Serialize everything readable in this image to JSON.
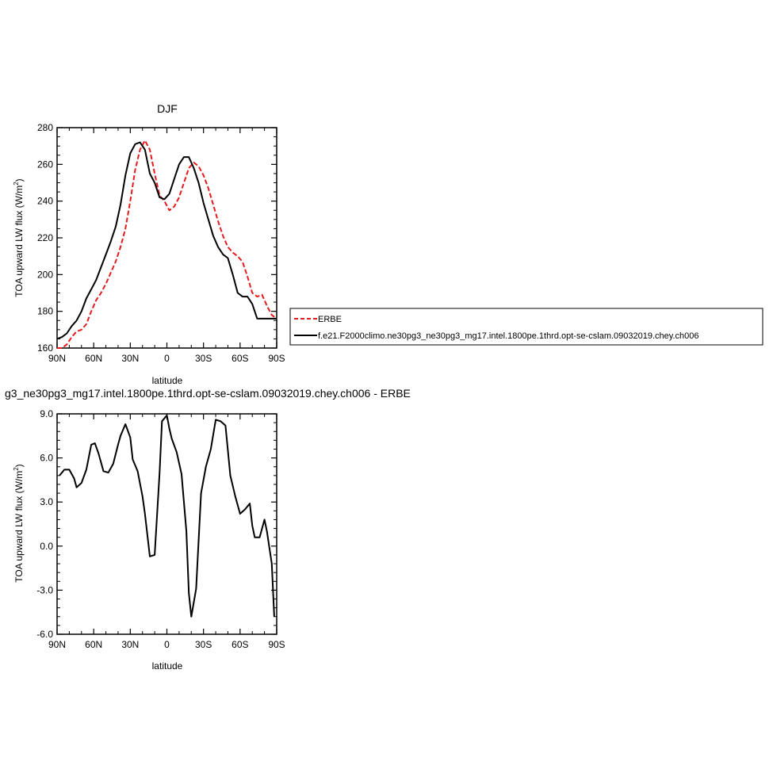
{
  "chart_data": [
    {
      "type": "line",
      "title": "DJF",
      "xlabel": "latitude",
      "ylabel": "TOA upward LW flux (W/m²)",
      "ylabel_main": "TOA upward LW flux (W/m",
      "ylabel_sup": "2",
      "ylabel_end": ")",
      "xlim": [
        90,
        -90
      ],
      "ylim": [
        160,
        280
      ],
      "x_ticks": [
        {
          "value": 90,
          "label": "90N"
        },
        {
          "value": 60,
          "label": "60N"
        },
        {
          "value": 30,
          "label": "30N"
        },
        {
          "value": 0,
          "label": "0"
        },
        {
          "value": -30,
          "label": "30S"
        },
        {
          "value": -60,
          "label": "60S"
        },
        {
          "value": -90,
          "label": "90S"
        }
      ],
      "y_ticks": [
        {
          "value": 160,
          "label": "160"
        },
        {
          "value": 180,
          "label": "180"
        },
        {
          "value": 200,
          "label": "200"
        },
        {
          "value": 220,
          "label": "220"
        },
        {
          "value": 240,
          "label": "240"
        },
        {
          "value": 260,
          "label": "260"
        },
        {
          "value": 280,
          "label": "280"
        }
      ],
      "legend_placement": "right, outside plot",
      "series": [
        {
          "name": "ERBE",
          "color": "#e41a1c",
          "dash": true,
          "x": [
            90,
            86,
            82,
            78,
            74,
            70,
            66,
            62,
            58,
            54,
            50,
            46,
            42,
            38,
            34,
            30,
            26,
            22,
            18,
            14,
            10,
            6,
            2,
            -2,
            -6,
            -10,
            -14,
            -18,
            -22,
            -26,
            -30,
            -34,
            -38,
            -42,
            -46,
            -50,
            -54,
            -58,
            -62,
            -66,
            -70,
            -74,
            -78,
            -82,
            -86,
            -90
          ],
          "y": [
            160,
            160,
            162,
            166,
            169,
            170,
            173,
            180,
            186,
            190,
            195,
            201,
            207,
            215,
            225,
            240,
            257,
            268,
            273,
            268,
            255,
            243,
            240,
            235,
            237,
            242,
            250,
            258,
            261,
            259,
            254,
            247,
            238,
            229,
            221,
            215,
            212,
            210,
            207,
            199,
            190,
            188,
            189,
            183,
            178,
            176
          ]
        },
        {
          "name": "f.e21.F2000climo.ne30pg3_ne30pg3_mg17.intel.1800pe.1thrd.opt-se-cslam.09032019.chey.ch006",
          "color": "#000000",
          "dash": false,
          "x": [
            90,
            86,
            82,
            78,
            74,
            70,
            66,
            62,
            58,
            54,
            50,
            46,
            42,
            38,
            34,
            30,
            26,
            22,
            18,
            14,
            10,
            6,
            2,
            -2,
            -6,
            -10,
            -14,
            -18,
            -22,
            -26,
            -30,
            -34,
            -38,
            -42,
            -46,
            -50,
            -54,
            -58,
            -62,
            -66,
            -70,
            -74,
            -78,
            -82,
            -86,
            -90
          ],
          "y": [
            165,
            166,
            168,
            172,
            175,
            180,
            187,
            192,
            197,
            204,
            211,
            218,
            226,
            238,
            254,
            266,
            271,
            272,
            268,
            255,
            250,
            242,
            241,
            244,
            252,
            260,
            264,
            264,
            258,
            250,
            239,
            230,
            221,
            215,
            211,
            209,
            200,
            190,
            188,
            188,
            184,
            176,
            176,
            176,
            176,
            176
          ]
        }
      ]
    },
    {
      "type": "line",
      "title": "g3_ne30pg3_mg17.intel.1800pe.1thrd.opt-se-cslam.09032019.chey.ch006 - ERBE",
      "xlabel": "latitude",
      "ylabel": "TOA upward LW flux (W/m²)",
      "ylabel_main": "TOA upward LW flux (W/m",
      "ylabel_sup": "2",
      "ylabel_end": ")",
      "xlim": [
        90,
        -90
      ],
      "ylim": [
        -6,
        9
      ],
      "x_ticks": [
        {
          "value": 90,
          "label": "90N"
        },
        {
          "value": 60,
          "label": "60N"
        },
        {
          "value": 30,
          "label": "30N"
        },
        {
          "value": 0,
          "label": "0"
        },
        {
          "value": -30,
          "label": "30S"
        },
        {
          "value": -60,
          "label": "60S"
        },
        {
          "value": -90,
          "label": "90S"
        }
      ],
      "y_ticks": [
        {
          "value": -6,
          "label": "-6.0"
        },
        {
          "value": -3,
          "label": "-3.0"
        },
        {
          "value": 0,
          "label": "0.0"
        },
        {
          "value": 3,
          "label": "3.0"
        },
        {
          "value": 6,
          "label": "6.0"
        },
        {
          "value": 9,
          "label": "9.0"
        }
      ],
      "series": [
        {
          "color": "#000000",
          "dash": false,
          "x": [
            88,
            84,
            80,
            76,
            74,
            70,
            66,
            62,
            59,
            56,
            52,
            48,
            44,
            40,
            38,
            34,
            30,
            28,
            24,
            20,
            18,
            14,
            10,
            6,
            4,
            0,
            -2,
            -4,
            -8,
            -12,
            -16,
            -18,
            -20,
            -24,
            -28,
            -32,
            -36,
            -40,
            -44,
            -48,
            -52,
            -56,
            -60,
            -64,
            -68,
            -70,
            -72,
            -76,
            -80,
            -82,
            -86,
            -88
          ],
          "y": [
            4.8,
            5.2,
            5.2,
            4.6,
            4.0,
            4.3,
            5.2,
            6.9,
            7.0,
            6.3,
            5.1,
            5.0,
            5.6,
            6.9,
            7.5,
            8.3,
            7.4,
            5.9,
            5.1,
            3.4,
            2.2,
            -0.7,
            -0.6,
            5.0,
            8.5,
            8.9,
            8.0,
            7.3,
            6.4,
            4.9,
            1.0,
            -3.2,
            -4.8,
            -2.9,
            3.6,
            5.4,
            6.6,
            8.6,
            8.5,
            8.2,
            4.8,
            3.4,
            2.2,
            2.5,
            2.9,
            1.4,
            0.6,
            0.6,
            1.8,
            1.0,
            -1.2,
            -4.8
          ]
        }
      ]
    }
  ]
}
